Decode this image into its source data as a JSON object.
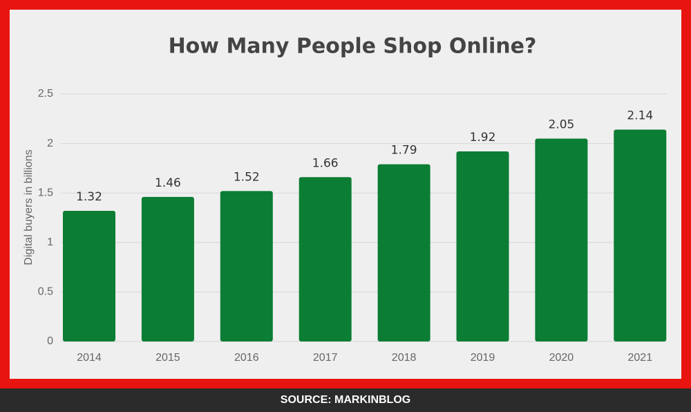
{
  "chart_data": {
    "type": "bar",
    "title": "How Many People Shop Online?",
    "y_label": "Digital buyers in billions",
    "categories": [
      "2014",
      "2015",
      "2016",
      "2017",
      "2018",
      "2019",
      "2020",
      "2021"
    ],
    "values": [
      1.32,
      1.46,
      1.52,
      1.66,
      1.79,
      1.92,
      2.05,
      2.14
    ],
    "color": "#0b7d34",
    "ylim": [
      0,
      2.5
    ],
    "yticks": [
      0,
      0.5,
      1,
      1.5,
      2,
      2.5
    ],
    "grid": true,
    "source": "SOURCE: MARKINBLOG"
  }
}
